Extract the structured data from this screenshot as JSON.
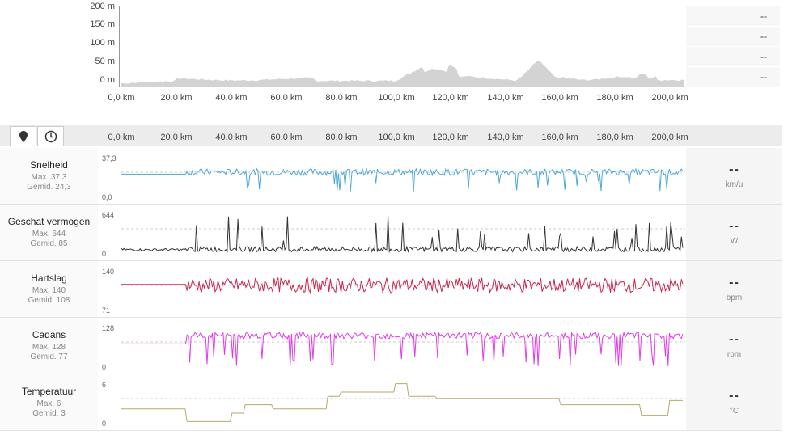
{
  "elevation": {
    "y_axis": [
      "200 m",
      "150 m",
      "100 m",
      "50 m",
      "0 m"
    ],
    "x_axis": [
      "0,0 km",
      "20,0 km",
      "40,0 km",
      "60,0 km",
      "80,0 km",
      "100,0 km",
      "120,0 km",
      "140,0 km",
      "160,0 km",
      "180,0 km",
      "200,0 km"
    ],
    "side_values": [
      "--",
      "--",
      "--",
      "--"
    ],
    "fill_color": "#d3d3d3"
  },
  "toolbar": {
    "icons": [
      "map-pin-icon",
      "clock-icon"
    ],
    "x_axis": [
      "0,0 km",
      "20,0 km",
      "40,0 km",
      "60,0 km",
      "80,0 km",
      "100,0 km",
      "120,0 km",
      "140,0 km",
      "160,0 km",
      "180,0 km",
      "200,0 km"
    ]
  },
  "rows": [
    {
      "name": "Snelheid",
      "max": "Max. 37,3",
      "avg": "Gemid. 24,3",
      "top": "37,3",
      "bottom": "0,0",
      "value": "--",
      "unit": "km/u",
      "color": "#4fa8d8"
    },
    {
      "name": "Geschat vermogen",
      "max": "Max. 644",
      "avg": "Gemid. 85",
      "top": "644",
      "bottom": "0",
      "value": "--",
      "unit": "W",
      "color": "#333333"
    },
    {
      "name": "Hartslag",
      "max": "Max. 140",
      "avg": "Gemid. 108",
      "top": "140",
      "bottom": "71",
      "value": "--",
      "unit": "bpm",
      "color": "#c8264a"
    },
    {
      "name": "Cadans",
      "max": "Max. 128",
      "avg": "Gemid. 77",
      "top": "128",
      "bottom": "0",
      "value": "--",
      "unit": "rpm",
      "color": "#e03ce6"
    },
    {
      "name": "Temperatuur",
      "max": "Max. 6",
      "avg": "Gemid. 3",
      "top": "6",
      "bottom": "0",
      "value": "--",
      "unit": "°C",
      "color": "#b7a96a"
    }
  ]
}
